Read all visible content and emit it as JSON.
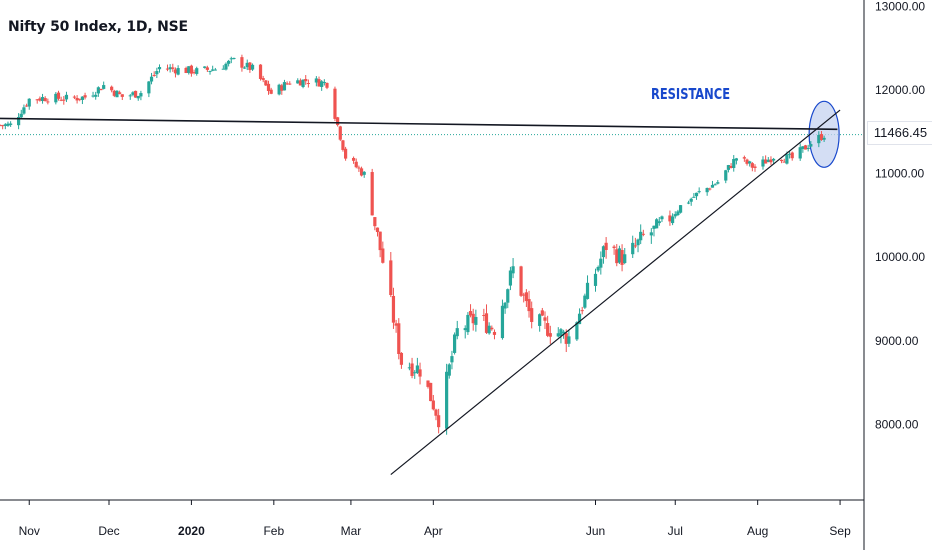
{
  "header": {
    "title": "Nifty 50 Index, 1D, NSE"
  },
  "annotation": {
    "label": "RESISTANCE"
  },
  "last_price": "11466.45",
  "colors": {
    "up": "#26a69a",
    "down": "#ef5350",
    "price_line": "#26a69a",
    "trend": "#131722",
    "circle_fill": "#c5d3f0",
    "circle_stroke": "#1848cc",
    "annotation": "#1848cc"
  },
  "chart_data": {
    "type": "candlestick",
    "title": "Nifty 50 Index, 1D, NSE",
    "ylim": [
      7000,
      13000
    ],
    "y_ticks": [
      "13000.00",
      "12000.00",
      "11000.00",
      "10000.00",
      "9000.00",
      "8000.00"
    ],
    "x_ticks": [
      "Nov",
      "Dec",
      "2020",
      "Feb",
      "Mar",
      "Apr",
      "Jun",
      "Jul",
      "Aug",
      "Sep"
    ],
    "x_range": [
      "2019-10-21",
      "2020-09-10"
    ],
    "last_price": 11466.45,
    "grid": false,
    "series_close": [
      [
        "2019-10-25",
        11580
      ],
      [
        "2019-11-01",
        11890
      ],
      [
        "2019-11-08",
        11910
      ],
      [
        "2019-11-15",
        11895
      ],
      [
        "2019-11-22",
        11915
      ],
      [
        "2019-11-29",
        12055
      ],
      [
        "2019-12-06",
        11920
      ],
      [
        "2019-12-13",
        11970
      ],
      [
        "2019-12-20",
        12270
      ],
      [
        "2019-12-27",
        12245
      ],
      [
        "2020-01-03",
        12225
      ],
      [
        "2020-01-10",
        12255
      ],
      [
        "2020-01-17",
        12350
      ],
      [
        "2020-01-24",
        12250
      ],
      [
        "2020-01-31",
        11960
      ],
      [
        "2020-02-07",
        12100
      ],
      [
        "2020-02-14",
        12115
      ],
      [
        "2020-02-21",
        12080
      ],
      [
        "2020-02-28",
        11200
      ],
      [
        "2020-03-06",
        10990
      ],
      [
        "2020-03-13",
        9950
      ],
      [
        "2020-03-20",
        8750
      ],
      [
        "2020-03-27",
        8660
      ],
      [
        "2020-04-03",
        8080
      ],
      [
        "2020-04-10",
        9110
      ],
      [
        "2020-04-17",
        9270
      ],
      [
        "2020-04-24",
        9155
      ],
      [
        "2020-05-01",
        9860
      ],
      [
        "2020-05-08",
        9250
      ],
      [
        "2020-05-15",
        9140
      ],
      [
        "2020-05-22",
        9040
      ],
      [
        "2020-05-29",
        9580
      ],
      [
        "2020-06-05",
        10140
      ],
      [
        "2020-06-12",
        9970
      ],
      [
        "2020-06-19",
        10240
      ],
      [
        "2020-06-26",
        10380
      ],
      [
        "2020-07-03",
        10610
      ],
      [
        "2020-07-10",
        10770
      ],
      [
        "2020-07-17",
        10900
      ],
      [
        "2020-07-24",
        11190
      ],
      [
        "2020-07-31",
        11070
      ],
      [
        "2020-08-07",
        11210
      ],
      [
        "2020-08-14",
        11180
      ],
      [
        "2020-08-21",
        11370
      ],
      [
        "2020-08-26",
        11466.45
      ]
    ],
    "annotations": [
      {
        "type": "line",
        "label": "RESISTANCE",
        "from": [
          "2019-10-21",
          11660
        ],
        "to": [
          "2020-08-31",
          11530
        ]
      },
      {
        "type": "line",
        "from": [
          "2020-03-16",
          7400
        ],
        "to": [
          "2020-09-01",
          11760
        ]
      },
      {
        "type": "ellipse",
        "center": [
          "2020-08-26",
          11470
        ]
      }
    ]
  }
}
